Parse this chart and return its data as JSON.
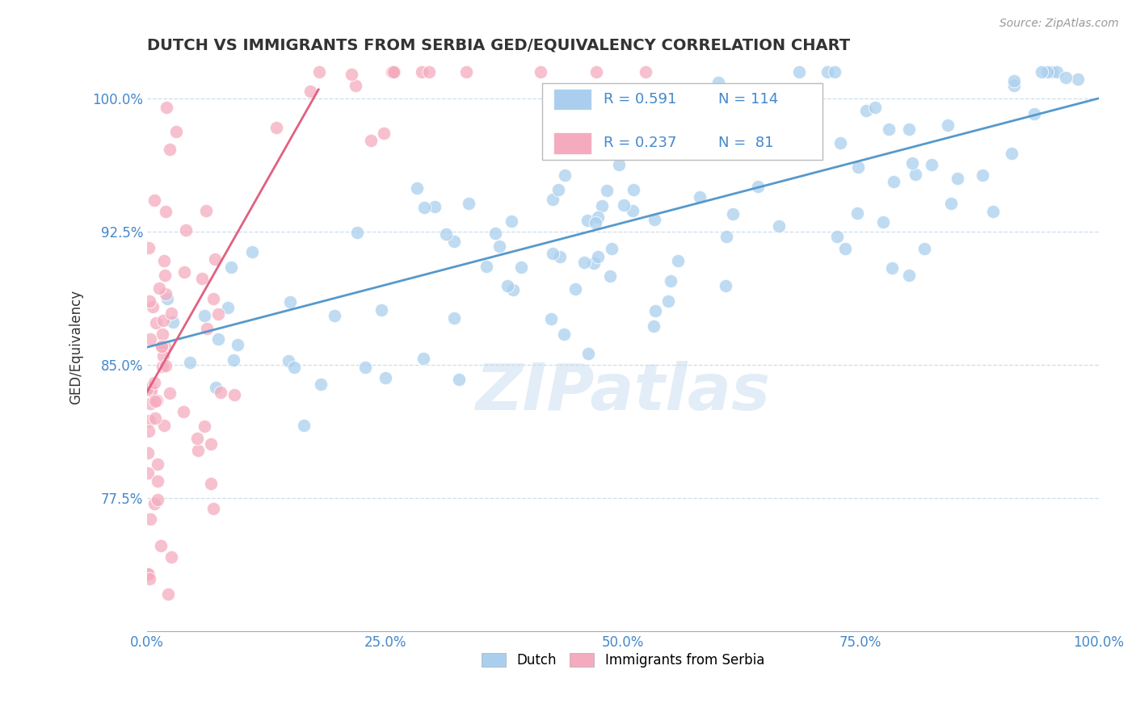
{
  "title": "DUTCH VS IMMIGRANTS FROM SERBIA GED/EQUIVALENCY CORRELATION CHART",
  "source": "Source: ZipAtlas.com",
  "ylabel": "GED/Equivalency",
  "xlim": [
    0,
    100
  ],
  "ylim": [
    70.0,
    102.0
  ],
  "yticks": [
    77.5,
    85.0,
    92.5,
    100.0
  ],
  "xticks": [
    0,
    25,
    50,
    75,
    100
  ],
  "xtick_labels": [
    "0.0%",
    "25.0%",
    "50.0%",
    "75.0%",
    "100.0%"
  ],
  "ytick_labels": [
    "77.5%",
    "85.0%",
    "92.5%",
    "100.0%"
  ],
  "legend_label1": "Dutch",
  "legend_label2": "Immigrants from Serbia",
  "r1": 0.591,
  "n1": 114,
  "r2": 0.237,
  "n2": 81,
  "color_blue": "#AACFEE",
  "color_pink": "#F5ABBE",
  "color_blue_dark": "#5599CC",
  "color_pink_dark": "#E06080",
  "color_blue_text": "#4488CC",
  "color_grid": "#CCDDEE",
  "title_color": "#333333",
  "source_color": "#999999",
  "watermark": "ZIPatlas",
  "blue_line_x0": 0,
  "blue_line_x1": 100,
  "blue_line_y0": 86.0,
  "blue_line_y1": 100.0,
  "pink_line_x0": 0,
  "pink_line_x1": 18,
  "pink_line_y0": 83.5,
  "pink_line_y1": 100.5
}
